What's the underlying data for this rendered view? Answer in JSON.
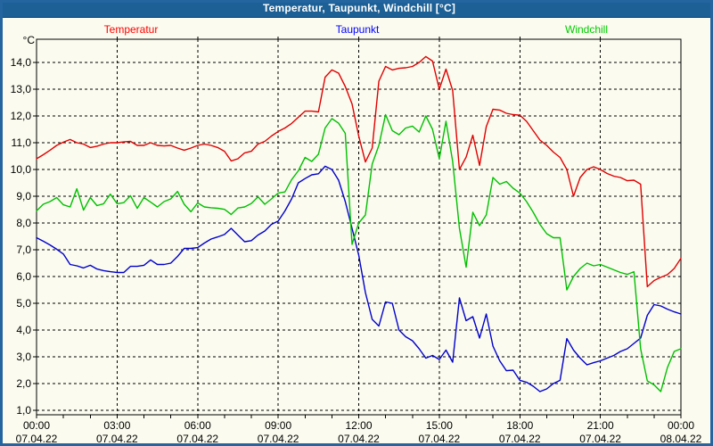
{
  "window": {
    "title": "Temperatur, Taupunkt, Windchill [°C]"
  },
  "colors": {
    "frame_blue": "#2465a0",
    "titlebar_blue": "#1c6095",
    "background_ivory": "#fbfbef",
    "grid_black": "#000000",
    "temperatur_red": "#e00000",
    "taupunkt_blue": "#0000cc",
    "windchill_green": "#00c000",
    "legend_red": "#ff0000",
    "legend_blue": "#0000ff",
    "legend_green": "#00cc00"
  },
  "chart_data": {
    "type": "line",
    "title": "Temperatur, Taupunkt, Windchill [°C]",
    "unit_label": "°C",
    "grid": "dashed",
    "legend_position": "top",
    "ylim": [
      0.83,
      14.87
    ],
    "x_hours_range": [
      0,
      24
    ],
    "y_axis": {
      "min": 1,
      "max": 14,
      "step": 1,
      "labels": [
        "14,0",
        "13,0",
        "12,0",
        "11,0",
        "10,0",
        "9,0",
        "8,0",
        "7,0",
        "6,0",
        "5,0",
        "4,0",
        "3,0",
        "2,0",
        "1,0"
      ]
    },
    "x_axis": {
      "major_tick_hours": 3,
      "minor_tick_hours": 1,
      "tick_labels": [
        {
          "time": "00:00",
          "date": "07.04.22"
        },
        {
          "time": "03:00",
          "date": "07.04.22"
        },
        {
          "time": "06:00",
          "date": "07.04.22"
        },
        {
          "time": "09:00",
          "date": "07.04.22"
        },
        {
          "time": "12:00",
          "date": "07.04.22"
        },
        {
          "time": "15:00",
          "date": "07.04.22"
        },
        {
          "time": "18:00",
          "date": "07.04.22"
        },
        {
          "time": "21:00",
          "date": "07.04.22"
        },
        {
          "time": "00:00",
          "date": "08.04.22"
        }
      ]
    },
    "series": [
      {
        "name": "Temperatur",
        "color": "#e00000",
        "legend_color": "#ff0000",
        "t_start_hours": 0,
        "t_step_hours": 0.25,
        "values": [
          10.4,
          10.55,
          10.72,
          10.9,
          11.02,
          11.12,
          11.0,
          10.95,
          10.82,
          10.87,
          10.95,
          11.0,
          11.0,
          11.03,
          11.05,
          10.9,
          10.9,
          11.0,
          10.9,
          10.88,
          10.9,
          10.8,
          10.72,
          10.8,
          10.9,
          10.95,
          10.9,
          10.82,
          10.68,
          10.32,
          10.4,
          10.62,
          10.68,
          10.95,
          11.05,
          11.25,
          11.42,
          11.55,
          11.72,
          11.95,
          12.18,
          12.18,
          12.15,
          13.45,
          13.72,
          13.6,
          13.1,
          12.45,
          11.25,
          10.28,
          10.8,
          13.3,
          13.85,
          13.72,
          13.78,
          13.8,
          13.85,
          14.0,
          14.22,
          14.05,
          13.0,
          13.75,
          12.95,
          10.0,
          10.46,
          11.28,
          10.15,
          11.6,
          12.25,
          12.22,
          12.1,
          12.05,
          12.03,
          11.8,
          11.45,
          11.1,
          10.9,
          10.65,
          10.45,
          10.0,
          9.0,
          9.7,
          10.0,
          10.1,
          10.0,
          9.85,
          9.75,
          9.7,
          9.58,
          9.6,
          9.45,
          5.62,
          5.85,
          5.97,
          6.07,
          6.3,
          6.68
        ]
      },
      {
        "name": "Taupunkt",
        "color": "#0000cc",
        "legend_color": "#0000ff",
        "t_start_hours": 0,
        "t_step_hours": 0.25,
        "values": [
          7.45,
          7.32,
          7.18,
          7.02,
          6.84,
          6.45,
          6.4,
          6.32,
          6.42,
          6.28,
          6.22,
          6.18,
          6.15,
          6.15,
          6.38,
          6.38,
          6.42,
          6.62,
          6.45,
          6.45,
          6.5,
          6.75,
          7.05,
          7.05,
          7.08,
          7.25,
          7.4,
          7.48,
          7.57,
          7.8,
          7.55,
          7.3,
          7.34,
          7.55,
          7.7,
          7.95,
          8.07,
          8.45,
          8.9,
          9.5,
          9.66,
          9.8,
          9.84,
          10.12,
          10.0,
          9.6,
          8.8,
          7.8,
          6.8,
          5.4,
          4.4,
          4.15,
          5.05,
          5.0,
          4.0,
          3.75,
          3.6,
          3.3,
          2.95,
          3.05,
          2.9,
          3.25,
          2.8,
          5.2,
          4.35,
          4.5,
          3.7,
          4.6,
          3.4,
          2.85,
          2.48,
          2.5,
          2.12,
          2.05,
          1.9,
          1.7,
          1.8,
          2.0,
          2.12,
          3.68,
          3.25,
          2.95,
          2.7,
          2.78,
          2.85,
          2.95,
          3.05,
          3.2,
          3.3,
          3.5,
          3.7,
          4.55,
          4.95,
          4.9,
          4.78,
          4.68,
          4.6
        ]
      },
      {
        "name": "Windchill",
        "color": "#00c000",
        "legend_color": "#00cc00",
        "t_start_hours": 0,
        "t_step_hours": 0.25,
        "values": [
          8.45,
          8.7,
          8.8,
          8.95,
          8.68,
          8.6,
          9.28,
          8.48,
          8.95,
          8.65,
          8.72,
          9.08,
          8.72,
          8.76,
          9.02,
          8.55,
          8.95,
          8.78,
          8.6,
          8.8,
          8.9,
          9.18,
          8.7,
          8.42,
          8.75,
          8.6,
          8.57,
          8.55,
          8.51,
          8.32,
          8.56,
          8.6,
          8.73,
          8.98,
          8.7,
          8.9,
          9.12,
          9.16,
          9.62,
          9.95,
          10.45,
          10.3,
          10.57,
          11.55,
          11.9,
          11.73,
          11.35,
          7.2,
          8.0,
          8.3,
          10.2,
          10.9,
          12.05,
          11.45,
          11.3,
          11.55,
          11.62,
          11.4,
          12.0,
          11.5,
          10.4,
          11.8,
          10.3,
          7.8,
          6.35,
          8.4,
          7.9,
          8.3,
          9.7,
          9.45,
          9.55,
          9.3,
          9.12,
          8.8,
          8.4,
          7.95,
          7.6,
          7.45,
          7.45,
          5.5,
          6.0,
          6.3,
          6.5,
          6.4,
          6.45,
          6.35,
          6.25,
          6.15,
          6.08,
          6.18,
          3.3,
          2.1,
          1.95,
          1.7,
          2.6,
          3.2,
          3.3
        ]
      }
    ]
  }
}
